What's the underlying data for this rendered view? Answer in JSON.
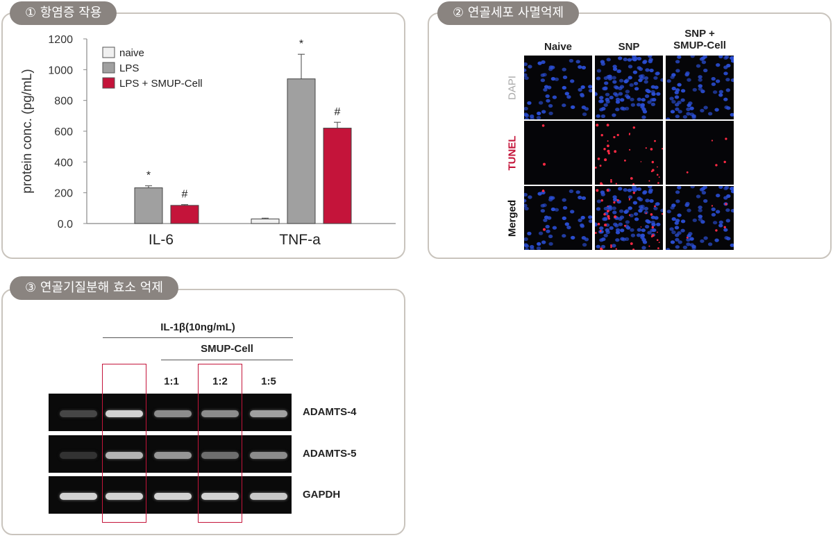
{
  "panels": {
    "p1": {
      "title": "① 항염증 작용"
    },
    "p2": {
      "title": "② 연골세포 사멸억제"
    },
    "p3": {
      "title": "③ 연골기질분해 효소 억제"
    }
  },
  "chart_data": {
    "type": "bar",
    "categories": [
      "IL-6",
      "TNF-a"
    ],
    "ylabel": "protein conc. (pg/mL)",
    "ylim": [
      0,
      1200
    ],
    "yticks": [
      "0.0",
      "200",
      "400",
      "600",
      "800",
      "1000",
      "1200"
    ],
    "legend_position": "top-left",
    "series": [
      {
        "name": "naive",
        "values": [
          0,
          30
        ],
        "errors": [
          0,
          5
        ],
        "color": "#f0f0f0",
        "marks": [
          "",
          ""
        ]
      },
      {
        "name": "LPS",
        "values": [
          232,
          940
        ],
        "errors": [
          13,
          160
        ],
        "color": "#a0a0a0",
        "marks": [
          "*",
          "*"
        ]
      },
      {
        "name": "LPS + SMUP-Cell",
        "values": [
          118,
          620
        ],
        "errors": [
          5,
          38
        ],
        "color": "#c4143a",
        "marks": [
          "#",
          "#"
        ]
      }
    ]
  },
  "microscopy": {
    "columns": [
      "Naive",
      "SNP",
      "SNP +\nSMUP-Cell"
    ],
    "rows": [
      {
        "label": "DAPI",
        "color": "#a9a9a9"
      },
      {
        "label": "TUNEL",
        "color": "#c4143a"
      },
      {
        "label": "Merged",
        "color": "#111111"
      }
    ]
  },
  "western": {
    "treatment": "IL-1β(10ng/mL)",
    "agent": "SMUP-Cell",
    "ratios": [
      "1:1",
      "1:2",
      "1:5"
    ],
    "bands": [
      {
        "label": "ADAMTS-4",
        "intensity": [
          0.15,
          0.85,
          0.5,
          0.5,
          0.6
        ]
      },
      {
        "label": "ADAMTS-5",
        "intensity": [
          0.05,
          0.7,
          0.55,
          0.35,
          0.5
        ]
      },
      {
        "label": "GAPDH",
        "intensity": [
          0.85,
          0.85,
          0.85,
          0.85,
          0.8
        ]
      }
    ],
    "highlight_color": "#c4143a"
  }
}
